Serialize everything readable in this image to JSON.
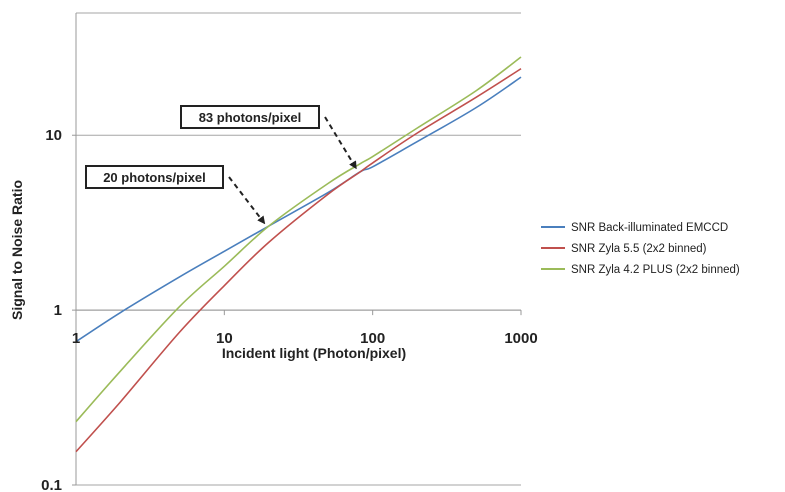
{
  "chart_data": {
    "type": "line",
    "x_scale": "log",
    "y_scale": "log",
    "xlabel": "Incident light (Photon/pixel)",
    "ylabel": "Signal to Noise Ratio",
    "xlim": [
      1,
      1000
    ],
    "ylim": [
      0.1,
      50
    ],
    "x_ticks": [
      "1",
      "10",
      "100",
      "1000"
    ],
    "y_ticks": [
      "0.1",
      "1",
      "10"
    ],
    "grid": "horizontal",
    "legend_position": "right",
    "series": [
      {
        "name": "SNR Back-illuminated EMCCD",
        "color": "#4a7fbd",
        "points": [
          [
            1,
            0.66
          ],
          [
            2,
            0.97
          ],
          [
            5,
            1.55
          ],
          [
            10,
            2.17
          ],
          [
            20,
            3.03
          ],
          [
            50,
            4.7
          ],
          [
            83,
            6.2
          ],
          [
            100,
            6.6
          ],
          [
            200,
            9.2
          ],
          [
            500,
            14.4
          ],
          [
            1000,
            21.5
          ]
        ]
      },
      {
        "name": "SNR Zyla 5.5 (2x2 binned)",
        "color": "#c0504d",
        "points": [
          [
            1,
            0.155
          ],
          [
            2,
            0.3
          ],
          [
            5,
            0.75
          ],
          [
            10,
            1.38
          ],
          [
            20,
            2.45
          ],
          [
            50,
            4.6
          ],
          [
            83,
            6.2
          ],
          [
            100,
            6.95
          ],
          [
            200,
            10.3
          ],
          [
            500,
            16.5
          ],
          [
            1000,
            24
          ]
        ]
      },
      {
        "name": "SNR Zyla 4.2 PLUS (2x2 binned)",
        "color": "#9bbb59",
        "points": [
          [
            1,
            0.23
          ],
          [
            2,
            0.45
          ],
          [
            5,
            1.05
          ],
          [
            10,
            1.78
          ],
          [
            20,
            3.03
          ],
          [
            50,
            5.3
          ],
          [
            83,
            6.9
          ],
          [
            100,
            7.55
          ],
          [
            200,
            11
          ],
          [
            500,
            18
          ],
          [
            1000,
            28
          ]
        ]
      }
    ],
    "annotations": [
      {
        "text": "83 photons/pixel",
        "x": 83,
        "y": 6.2
      },
      {
        "text": "20 photons/pixel",
        "x": 20,
        "y": 3.0
      }
    ]
  }
}
